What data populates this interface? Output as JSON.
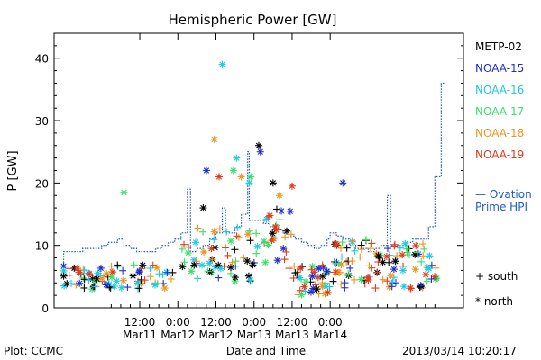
{
  "chart_data": {
    "type": "scatter",
    "title": "Hemispheric Power [GW]",
    "ylabel": "P [GW]",
    "xlabel": "Date and Time",
    "ylim": [
      0,
      44
    ],
    "yticks": [
      0,
      10,
      20,
      30,
      40
    ],
    "xlim": [
      -15,
      114
    ],
    "x_unit": "hours from 2013-03-11 00:00",
    "xticks": [
      {
        "x": 12,
        "line1": "12:00",
        "line2": "Mar11"
      },
      {
        "x": 24,
        "line1": "0:00",
        "line2": "Mar12"
      },
      {
        "x": 36,
        "line1": "12:00",
        "line2": "Mar12"
      },
      {
        "x": 48,
        "line1": "0:00",
        "line2": "Mar13"
      },
      {
        "x": 60,
        "line1": "12:00",
        "line2": "Mar13"
      },
      {
        "x": 72,
        "line1": "0:00",
        "line2": "Mar14"
      }
    ],
    "grid": false,
    "legend_position": "right",
    "series": [
      {
        "name": "METP-02",
        "color": "#000000"
      },
      {
        "name": "NOAA-15",
        "color": "#1d2fcf"
      },
      {
        "name": "NOAA-16",
        "color": "#1ec8e6"
      },
      {
        "name": "NOAA-17",
        "color": "#38e06a"
      },
      {
        "name": "NOAA-18",
        "color": "#f0941e"
      },
      {
        "name": "NOAA-19",
        "color": "#e23a1a"
      }
    ],
    "ovation": {
      "name_line1": "— Ovation",
      "name_line2": "Prime HPI",
      "color": "#1f5cc8",
      "steps": [
        [
          -12,
          5.5
        ],
        [
          -10,
          9
        ],
        [
          -6,
          9
        ],
        [
          -3,
          9.5
        ],
        [
          0,
          9.5
        ],
        [
          2,
          10
        ],
        [
          5,
          10.5
        ],
        [
          7,
          11
        ],
        [
          9,
          10
        ],
        [
          11,
          9.5
        ],
        [
          14,
          9
        ],
        [
          17,
          9
        ],
        [
          19,
          9.5
        ],
        [
          21,
          10
        ],
        [
          23,
          10.5
        ],
        [
          25,
          11
        ],
        [
          27,
          12
        ],
        [
          28,
          19
        ],
        [
          28.5,
          9
        ],
        [
          30,
          9
        ],
        [
          32,
          9.5
        ],
        [
          34,
          10
        ],
        [
          36,
          11
        ],
        [
          38,
          12
        ],
        [
          39,
          16
        ],
        [
          39.5,
          12
        ],
        [
          42,
          12
        ],
        [
          44,
          13
        ],
        [
          46,
          15
        ],
        [
          46.5,
          25
        ],
        [
          47,
          14
        ],
        [
          49,
          14
        ],
        [
          51,
          14
        ],
        [
          53,
          13.5
        ],
        [
          55,
          13
        ],
        [
          57,
          12.5
        ],
        [
          59,
          12
        ],
        [
          61,
          11.5
        ],
        [
          63,
          11
        ],
        [
          65,
          10.5
        ],
        [
          67,
          10
        ],
        [
          69,
          9.5
        ],
        [
          71,
          10
        ],
        [
          72,
          11
        ],
        [
          74,
          12
        ],
        [
          76,
          11.5
        ],
        [
          78,
          11
        ],
        [
          80,
          10
        ],
        [
          82,
          9.5
        ],
        [
          84,
          9.5
        ],
        [
          86,
          9
        ],
        [
          88,
          9.5
        ],
        [
          90,
          10
        ],
        [
          91,
          18
        ],
        [
          91.5,
          10
        ],
        [
          94,
          10
        ],
        [
          96,
          10
        ],
        [
          98,
          10.5
        ],
        [
          100,
          11
        ],
        [
          103,
          11
        ],
        [
          105,
          13
        ],
        [
          105.5,
          21
        ],
        [
          107,
          21
        ],
        [
          107.5,
          36
        ],
        [
          108,
          36
        ]
      ]
    },
    "markers": [
      {
        "label": "south",
        "symbol": "+"
      },
      {
        "label": "north",
        "symbol": "*"
      }
    ]
  },
  "footer": {
    "plot_label": "Plot: CCMC",
    "timestamp": "2013/03/14 10:20:17"
  }
}
